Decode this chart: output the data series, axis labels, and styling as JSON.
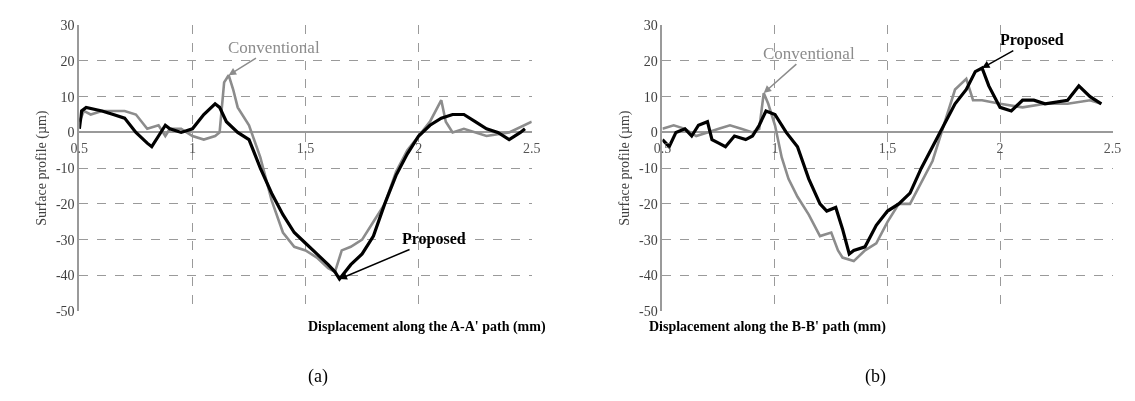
{
  "chart_data": [
    {
      "type": "line",
      "xlabel": "Displacement along the A-A' path (mm)",
      "ylabel": "Surface profile (µm)",
      "xlim": [
        0.5,
        2.5
      ],
      "ylim": [
        -50,
        30
      ],
      "xticks": [
        0.5,
        1,
        1.5,
        2,
        2.5
      ],
      "yticks": [
        -50,
        -40,
        -30,
        -20,
        -10,
        0,
        10,
        20,
        30
      ],
      "grid": true,
      "legend": false,
      "marker": "none",
      "line_style": "solid",
      "annotations": [
        "(a)"
      ],
      "series": [
        {
          "name": "Conventional",
          "color": "#8c8c8c",
          "x": [
            0.5,
            0.52,
            0.55,
            0.6,
            0.7,
            0.75,
            0.8,
            0.85,
            0.88,
            0.9,
            0.95,
            1.0,
            1.05,
            1.1,
            1.12,
            1.14,
            1.16,
            1.18,
            1.2,
            1.25,
            1.3,
            1.35,
            1.4,
            1.45,
            1.5,
            1.55,
            1.6,
            1.63,
            1.66,
            1.7,
            1.75,
            1.8,
            1.85,
            1.9,
            1.95,
            2.0,
            2.05,
            2.1,
            2.12,
            2.15,
            2.2,
            2.3,
            2.4,
            2.5
          ],
          "values": [
            3,
            6,
            5,
            6,
            6,
            5,
            1,
            2,
            -1,
            1,
            1,
            -1,
            -2,
            -1,
            0,
            14,
            16,
            12,
            7,
            2,
            -7,
            -19,
            -28,
            -32,
            -33,
            -35,
            -38,
            -39,
            -33,
            -32,
            -30,
            -25,
            -20,
            -11,
            -5,
            -1,
            3,
            9,
            3,
            0,
            1,
            -1,
            0,
            3
          ]
        },
        {
          "name": "Proposed",
          "color": "#000000",
          "x": [
            0.5,
            0.51,
            0.53,
            0.6,
            0.65,
            0.7,
            0.75,
            0.8,
            0.82,
            0.85,
            0.88,
            0.9,
            0.95,
            1.0,
            1.05,
            1.1,
            1.12,
            1.15,
            1.2,
            1.25,
            1.3,
            1.35,
            1.4,
            1.45,
            1.5,
            1.55,
            1.6,
            1.63,
            1.65,
            1.7,
            1.75,
            1.8,
            1.85,
            1.9,
            1.95,
            2.0,
            2.05,
            2.1,
            2.15,
            2.2,
            2.25,
            2.3,
            2.35,
            2.4,
            2.45,
            2.47
          ],
          "values": [
            1,
            6,
            7,
            6,
            5,
            4,
            0,
            -3,
            -4,
            -1,
            2,
            1,
            0,
            1,
            5,
            8,
            7,
            3,
            0,
            -2,
            -10,
            -17,
            -23,
            -28,
            -31,
            -34,
            -37,
            -39,
            -41,
            -37,
            -34,
            -29,
            -20,
            -12,
            -6,
            -1,
            2,
            4,
            5,
            5,
            3,
            1,
            0,
            -2,
            0,
            1
          ]
        }
      ]
    },
    {
      "type": "line",
      "xlabel": "Displacement along the B-B' path (mm)",
      "ylabel": "Surface profile (µm)",
      "xlim": [
        0.5,
        2.5
      ],
      "ylim": [
        -50,
        30
      ],
      "xticks": [
        0.5,
        1,
        1.5,
        2,
        2.5
      ],
      "yticks": [
        -50,
        -40,
        -30,
        -20,
        -10,
        0,
        10,
        20,
        30
      ],
      "grid": true,
      "legend": false,
      "marker": "none",
      "line_style": "solid",
      "annotations": [
        "(b)"
      ],
      "series": [
        {
          "name": "Conventional",
          "color": "#8c8c8c",
          "x": [
            0.5,
            0.55,
            0.6,
            0.65,
            0.7,
            0.75,
            0.8,
            0.85,
            0.9,
            0.93,
            0.95,
            0.97,
            1.0,
            1.03,
            1.06,
            1.1,
            1.15,
            1.2,
            1.25,
            1.28,
            1.3,
            1.35,
            1.4,
            1.45,
            1.5,
            1.55,
            1.6,
            1.7,
            1.75,
            1.8,
            1.85,
            1.88,
            1.92,
            2.0,
            2.1,
            2.2,
            2.3,
            2.4,
            2.45
          ],
          "values": [
            1,
            2,
            1,
            -1,
            0,
            1,
            2,
            1,
            0,
            1,
            11,
            8,
            2,
            -7,
            -13,
            -18,
            -23,
            -29,
            -28,
            -33,
            -35,
            -36,
            -33,
            -31,
            -25,
            -20,
            -20,
            -8,
            2,
            12,
            15,
            9,
            9,
            8,
            7,
            8,
            8,
            9,
            8
          ]
        },
        {
          "name": "Proposed",
          "color": "#000000",
          "x": [
            0.5,
            0.53,
            0.56,
            0.6,
            0.63,
            0.66,
            0.7,
            0.72,
            0.75,
            0.78,
            0.82,
            0.87,
            0.9,
            0.93,
            0.96,
            1.0,
            1.05,
            1.1,
            1.15,
            1.2,
            1.23,
            1.27,
            1.3,
            1.33,
            1.35,
            1.4,
            1.45,
            1.5,
            1.55,
            1.6,
            1.65,
            1.7,
            1.75,
            1.8,
            1.85,
            1.89,
            1.92,
            1.95,
            2.0,
            2.05,
            2.1,
            2.15,
            2.2,
            2.3,
            2.35,
            2.4,
            2.45
          ],
          "values": [
            -2,
            -4,
            0,
            1,
            -1,
            2,
            3,
            -2,
            -3,
            -4,
            -1,
            -2,
            -1,
            2,
            6,
            5,
            0,
            -4,
            -13,
            -20,
            -22,
            -21,
            -27,
            -34,
            -33,
            -32,
            -26,
            -22,
            -20,
            -17,
            -10,
            -4,
            2,
            8,
            12,
            17,
            18,
            13,
            7,
            6,
            9,
            9,
            8,
            9,
            13,
            10,
            8
          ]
        }
      ]
    }
  ]
}
